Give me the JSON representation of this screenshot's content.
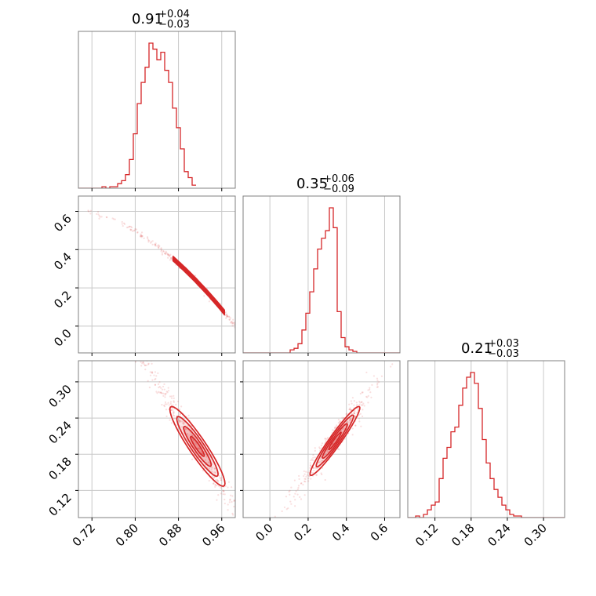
{
  "colors": {
    "series": "#d62728",
    "grid": "#c8c8c8",
    "frame": "#808080"
  },
  "chart_data": {
    "type": "corner",
    "grid": true,
    "parameters": [
      {
        "median": "0.91",
        "plus": "+0.04",
        "minus": "−0.03",
        "range": [
          0.695,
          0.985
        ],
        "ticks": [
          0.72,
          0.8,
          0.88,
          0.96
        ],
        "tick_labels": [
          "0.72",
          "0.80",
          "0.88",
          "0.96"
        ]
      },
      {
        "median": "0.35",
        "plus": "+0.06",
        "minus": "−0.09",
        "range": [
          -0.14,
          0.68
        ],
        "ticks": [
          0.0,
          0.2,
          0.4,
          0.6
        ],
        "tick_labels": [
          "0.0",
          "0.2",
          "0.4",
          "0.6"
        ]
      },
      {
        "median": "0.21",
        "plus": "+0.03",
        "minus": "−0.03",
        "range": [
          0.075,
          0.335
        ],
        "ticks": [
          0.12,
          0.18,
          0.24,
          0.3
        ],
        "tick_labels": [
          "0.12",
          "0.18",
          "0.24",
          "0.30"
        ]
      }
    ],
    "histograms": [
      {
        "bin_start": 0.695,
        "bin_width": 0.00725,
        "counts": [
          0,
          0,
          0,
          0,
          0,
          0,
          1,
          0,
          1,
          1,
          3,
          5,
          9,
          19,
          36,
          56,
          70,
          80,
          96,
          92,
          85,
          90,
          78,
          70,
          53,
          40,
          26,
          11,
          7,
          2
        ]
      },
      {
        "bin_start": -0.14,
        "bin_width": 0.0205,
        "counts": [
          0,
          0,
          0,
          0,
          0,
          0,
          0,
          0,
          0,
          0,
          0,
          0,
          2,
          3,
          6,
          15,
          26,
          40,
          55,
          68,
          75,
          80,
          95,
          82,
          27,
          10,
          4,
          2,
          1,
          0,
          0,
          0,
          0,
          0,
          0,
          0,
          0,
          0,
          0,
          0
        ]
      },
      {
        "bin_start": 0.075,
        "bin_width": 0.0065,
        "counts": [
          0,
          0,
          1,
          0,
          2,
          5,
          8,
          10,
          25,
          38,
          45,
          55,
          58,
          72,
          83,
          90,
          93,
          86,
          70,
          50,
          35,
          25,
          18,
          13,
          8,
          5,
          2,
          1,
          1,
          0,
          0,
          0,
          0,
          0,
          0,
          0,
          0,
          0,
          0,
          0
        ]
      }
    ]
  }
}
